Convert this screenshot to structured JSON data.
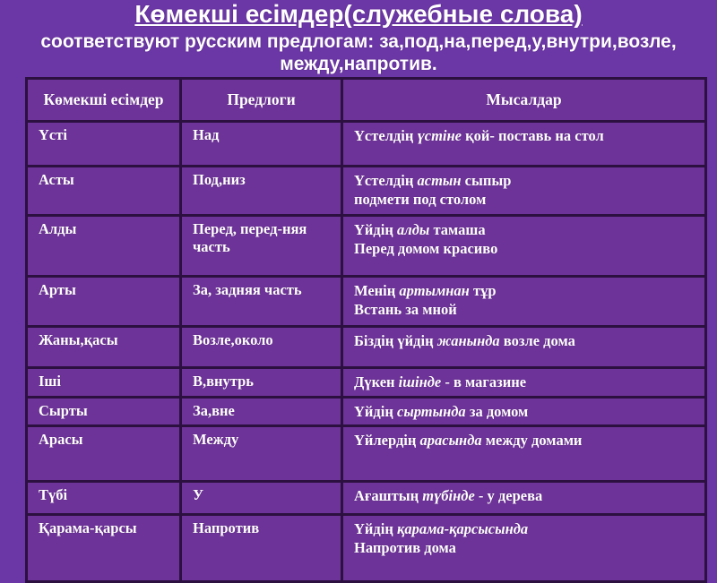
{
  "page": {
    "title": "Көмекші есімдер(служебные слова)",
    "subtitle_lines": [
      "соответствуют русским предлогам: за,под,на,перед,у,внутри,возле,",
      "между,напротив."
    ]
  },
  "colors": {
    "page_background": "#6B36A5",
    "cell_background": "#6E3399",
    "table_border": "#2B1040",
    "text": "#FFFFFF"
  },
  "table": {
    "headers": [
      "Көмекші есімдер",
      "Предлоги",
      "Мысалдар"
    ],
    "rows": [
      {
        "kazakh": "Үсті",
        "prepositions": "Над",
        "examples": [
          "Үстелдің *үстіне* қой- поставь на стол"
        ]
      },
      {
        "kazakh": "Асты",
        "prepositions": "Под,низ",
        "examples": [
          "Үстелдің *астын* сыпыр",
          "подмети под столом"
        ]
      },
      {
        "kazakh": "Алды",
        "prepositions": "Перед, перед-няя часть",
        "examples": [
          "Үйдің *алды* тамаша",
          "Перед домом красиво"
        ]
      },
      {
        "kazakh": "Арты",
        "prepositions": "За, задняя часть",
        "examples": [
          "Менің *артымнан* тұр",
          "Встань за мной"
        ]
      },
      {
        "kazakh": "Жаны,қасы",
        "prepositions": "Возле,около",
        "examples": [
          "Біздің үйдің *жанында* возле дома"
        ]
      },
      {
        "kazakh": "Іші",
        "prepositions": "В,внутрь",
        "examples": [
          "Дүкен *ішінде* - в магазине"
        ]
      },
      {
        "kazakh": "Сырты",
        "prepositions": "За,вне",
        "examples": [
          "Үйдің *сыртында* за домом"
        ]
      },
      {
        "kazakh": "Арасы",
        "prepositions": "Между",
        "examples": [
          "Үйлердің *арасында* между домами"
        ]
      },
      {
        "kazakh": "Түбі",
        "prepositions": "У",
        "examples": [
          "Ағаштың *түбінде* - у дерева"
        ]
      },
      {
        "kazakh": "Қарама-қарсы",
        "prepositions": "Напротив",
        "examples": [
          "Үйдің *қарама-қарсысында*",
          "Напротив дома"
        ]
      }
    ]
  }
}
